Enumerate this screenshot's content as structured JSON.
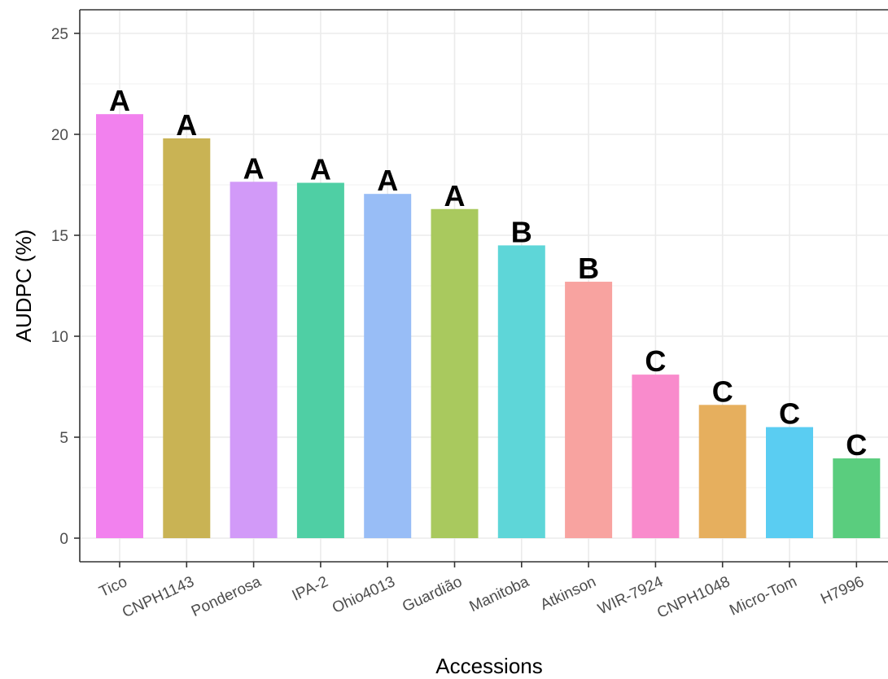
{
  "chart_data": {
    "type": "bar",
    "title": "",
    "xlabel": "Accessions",
    "ylabel": "AUDPC (%)",
    "ylim": [
      -1.1,
      26.0
    ],
    "yticks": [
      0,
      5,
      10,
      15,
      20,
      25
    ],
    "ytick_labels": [
      "0",
      "5",
      "10",
      "15",
      "20",
      "25"
    ],
    "grid": true,
    "legend": "none",
    "categories": [
      "Tico",
      "CNPH1143",
      "Ponderosa",
      "IPA-2",
      "Ohio4013",
      "Guardião",
      "Manitoba",
      "Atkinson",
      "WIR-7924",
      "CNPH1048",
      "Micro-Tom",
      "H7996"
    ],
    "values": [
      21.0,
      19.8,
      17.65,
      17.6,
      17.05,
      16.3,
      14.5,
      12.7,
      8.1,
      6.6,
      5.5,
      3.95
    ],
    "labels": [
      "A",
      "A",
      "A",
      "A",
      "A",
      "A",
      "B",
      "B",
      "C",
      "C",
      "C",
      "C"
    ],
    "colors": [
      "#F281EE",
      "#C9B354",
      "#D29AF8",
      "#4FCFA4",
      "#98BDF6",
      "#A9C95E",
      "#5ED6D8",
      "#F8A3A0",
      "#F98BCC",
      "#E6AF5E",
      "#5ACDF2",
      "#5ACD7E"
    ]
  }
}
